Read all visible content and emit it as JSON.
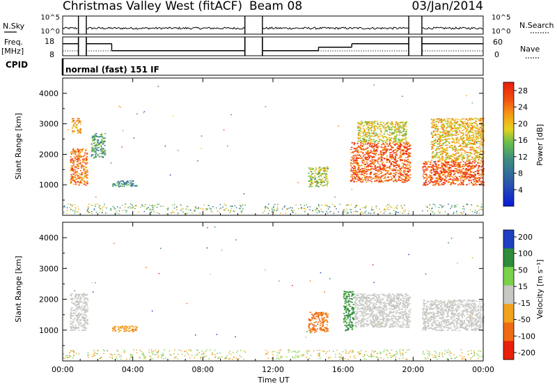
{
  "header": {
    "station": "Christmas Valley West (fitACF)",
    "beam": "Beam 08",
    "date": "03/Jan/2014"
  },
  "params": {
    "nsky_label": "N.Sky",
    "nsearch_label": "N.Search",
    "freq_label_1": "Freq.",
    "freq_label_2": "[MHz]",
    "nave_label": "Nave",
    "cpid_label": "CPID",
    "cpid_value": "normal (fast) 151 IF",
    "nsky_ticks": [
      "10^5",
      "10^0"
    ],
    "nsearch_ticks": [
      "10^5",
      "10^0"
    ],
    "freq_ticks": [
      "18",
      "8"
    ],
    "nave_ticks": [
      "60",
      "0"
    ]
  },
  "x_axis": {
    "label": "Time UT",
    "ticks": [
      "00:00",
      "04:00",
      "08:00",
      "12:00",
      "16:00",
      "20:00",
      "00:00"
    ]
  },
  "panels": {
    "power": {
      "ylabel": "Slant Range [km]",
      "yticks": [
        "1000",
        "2000",
        "3000",
        "4000"
      ],
      "cbar_label": "Power [dB]",
      "cbar_ticks": [
        "4",
        "8",
        "12",
        "16",
        "20",
        "24",
        "28"
      ]
    },
    "velocity": {
      "ylabel": "Slant Range [km]",
      "yticks": [
        "1000",
        "2000",
        "3000",
        "4000"
      ],
      "cbar_label": "Velocity [m s⁻¹]",
      "cbar_ticks": [
        "200",
        "100",
        "50",
        "15",
        "-15",
        "-50",
        "-100",
        "-200"
      ]
    }
  },
  "chart_data": [
    {
      "type": "line",
      "name": "N.Sky",
      "x_range_hours": [
        0,
        24
      ],
      "y_scale": "log",
      "y_range": [
        1,
        100000
      ],
      "gaps_hours": [
        [
          0.9,
          1.35
        ],
        [
          10.4,
          11.4
        ],
        [
          19.75,
          20.5
        ]
      ]
    },
    {
      "type": "line",
      "name": "Freq.",
      "y_range_mhz": [
        8,
        18
      ],
      "segments": [
        {
          "start": 0.0,
          "end": 0.9,
          "value": 14.5
        },
        {
          "start": 1.35,
          "end": 2.8,
          "value": 14.5
        },
        {
          "start": 2.8,
          "end": 10.4,
          "value": 10.5
        },
        {
          "start": 11.4,
          "end": 14.6,
          "value": 10.5
        },
        {
          "start": 14.6,
          "end": 16.5,
          "value": 12.5
        },
        {
          "start": 16.5,
          "end": 19.75,
          "value": 14.5
        },
        {
          "start": 20.5,
          "end": 24.0,
          "value": 14.5
        }
      ],
      "gaps_hours": [
        [
          0.9,
          1.35
        ],
        [
          10.4,
          11.4
        ],
        [
          19.75,
          20.5
        ]
      ]
    },
    {
      "type": "heatmap",
      "name": "Power",
      "x_range_hours": [
        0,
        24
      ],
      "y_range_km": [
        0,
        4500
      ],
      "colorbar": {
        "label": "Power [dB]",
        "range": [
          0,
          30
        ],
        "ticks": [
          4,
          8,
          12,
          16,
          20,
          24,
          28
        ]
      },
      "echo_regions": [
        {
          "t": [
            0.4,
            1.4
          ],
          "r": [
            1000,
            2200
          ],
          "value": 24
        },
        {
          "t": [
            0.5,
            1.0
          ],
          "r": [
            2700,
            3200
          ],
          "value": 22
        },
        {
          "t": [
            1.6,
            2.4
          ],
          "r": [
            1900,
            2700
          ],
          "value": 12
        },
        {
          "t": [
            2.8,
            4.2
          ],
          "r": [
            950,
            1150
          ],
          "value": 10
        },
        {
          "t": [
            14.0,
            15.1
          ],
          "r": [
            950,
            1600
          ],
          "value": 16
        },
        {
          "t": [
            16.4,
            19.8
          ],
          "r": [
            1100,
            2400
          ],
          "value": 26
        },
        {
          "t": [
            16.8,
            19.6
          ],
          "r": [
            2400,
            3100
          ],
          "value": 18
        },
        {
          "t": [
            20.5,
            24.0
          ],
          "r": [
            1000,
            1800
          ],
          "value": 26
        },
        {
          "t": [
            21.0,
            24.0
          ],
          "r": [
            1800,
            3200
          ],
          "value": 20
        }
      ]
    },
    {
      "type": "heatmap",
      "name": "Velocity",
      "x_range_hours": [
        0,
        24
      ],
      "y_range_km": [
        0,
        4500
      ],
      "colorbar": {
        "label": "Velocity [m s⁻¹]",
        "range": [
          -200,
          200
        ],
        "ticks": [
          200,
          100,
          50,
          15,
          -15,
          -50,
          -100,
          -200
        ]
      },
      "echo_regions": [
        {
          "t": [
            0.4,
            1.4
          ],
          "r": [
            1000,
            2200
          ],
          "value": 0
        },
        {
          "t": [
            2.8,
            4.2
          ],
          "r": [
            950,
            1150
          ],
          "value": -40
        },
        {
          "t": [
            14.0,
            15.1
          ],
          "r": [
            950,
            1600
          ],
          "value": -60
        },
        {
          "t": [
            16.0,
            16.6
          ],
          "r": [
            1000,
            2300
          ],
          "value": 60
        },
        {
          "t": [
            16.6,
            19.8
          ],
          "r": [
            1100,
            2200
          ],
          "value": 0
        },
        {
          "t": [
            20.5,
            24.0
          ],
          "r": [
            1000,
            2000
          ],
          "value": 0
        }
      ]
    }
  ]
}
